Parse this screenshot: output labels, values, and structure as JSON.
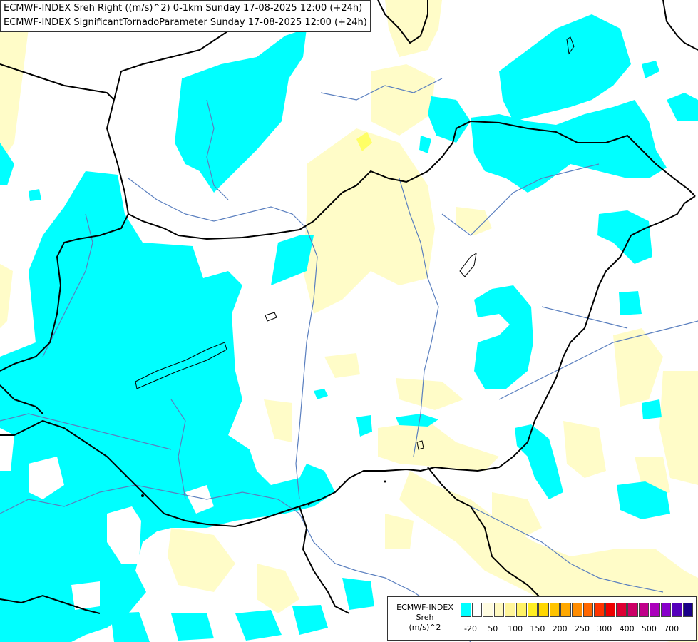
{
  "title": {
    "line1": "ECMWF-INDEX Sreh Right ((m/s)^2) 0-1km Sunday 17-08-2025 12:00 (+24h)",
    "line2": "ECMWF-INDEX SignificantTornadoParameter Sunday 17-08-2025 12:00 (+24h)"
  },
  "legend": {
    "line1": "ECMWF-INDEX",
    "line2": "Sreh",
    "line3": "(m/s)^2",
    "colors": [
      "#00ffff",
      "#ffffff",
      "#fffce0",
      "#fff9c0",
      "#fff59a",
      "#fff266",
      "#ffee22",
      "#ffd700",
      "#ffc400",
      "#ffa800",
      "#ff8c00",
      "#ff6600",
      "#ff3300",
      "#ee0000",
      "#dd0033",
      "#cc0066",
      "#c0008a",
      "#aa00bb",
      "#8800cc",
      "#5500bb",
      "#1a0088"
    ],
    "tick_labels": [
      "-20",
      "50",
      "100",
      "150",
      "200",
      "250",
      "300",
      "400",
      "500",
      "700"
    ]
  },
  "colors": {
    "cyan": "#00ffff",
    "pale_yellow": "#fffcc8",
    "yellow": "#ffff66",
    "border": "#000000",
    "river": "#5a7fbf"
  }
}
